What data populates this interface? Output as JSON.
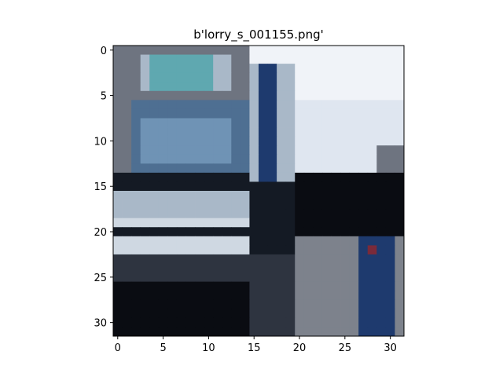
{
  "figure": {
    "title": "b'lorry_s_001155.png'"
  },
  "axes": {
    "x_ticks": [
      "0",
      "5",
      "10",
      "15",
      "20",
      "25",
      "30"
    ],
    "y_ticks": [
      "0",
      "5",
      "10",
      "15",
      "20",
      "25",
      "30"
    ],
    "x_range": [
      -0.5,
      31.5
    ],
    "y_range": [
      -0.5,
      31.5
    ]
  },
  "image": {
    "grid_size": 32,
    "subject": "pixelated photo of the front of a lorry with a blue cab, sky upper right, road and dark vehicle lower right",
    "colors": {
      "sky": "#dfe6f0",
      "sky_bright": "#f0f3f8",
      "cab_white": "#cfd8e2",
      "cab_light": "#a9b8c8",
      "windshield": "#4e6f92",
      "windshield_light": "#6f93b5",
      "teal": "#5fa8b0",
      "dark": "#141a24",
      "black": "#0a0c12",
      "navy": "#1e3a6e",
      "grey": "#6e7480",
      "road": "#7d828c",
      "shadow": "#2e3440",
      "red_accent": "#7a2a3a"
    }
  }
}
